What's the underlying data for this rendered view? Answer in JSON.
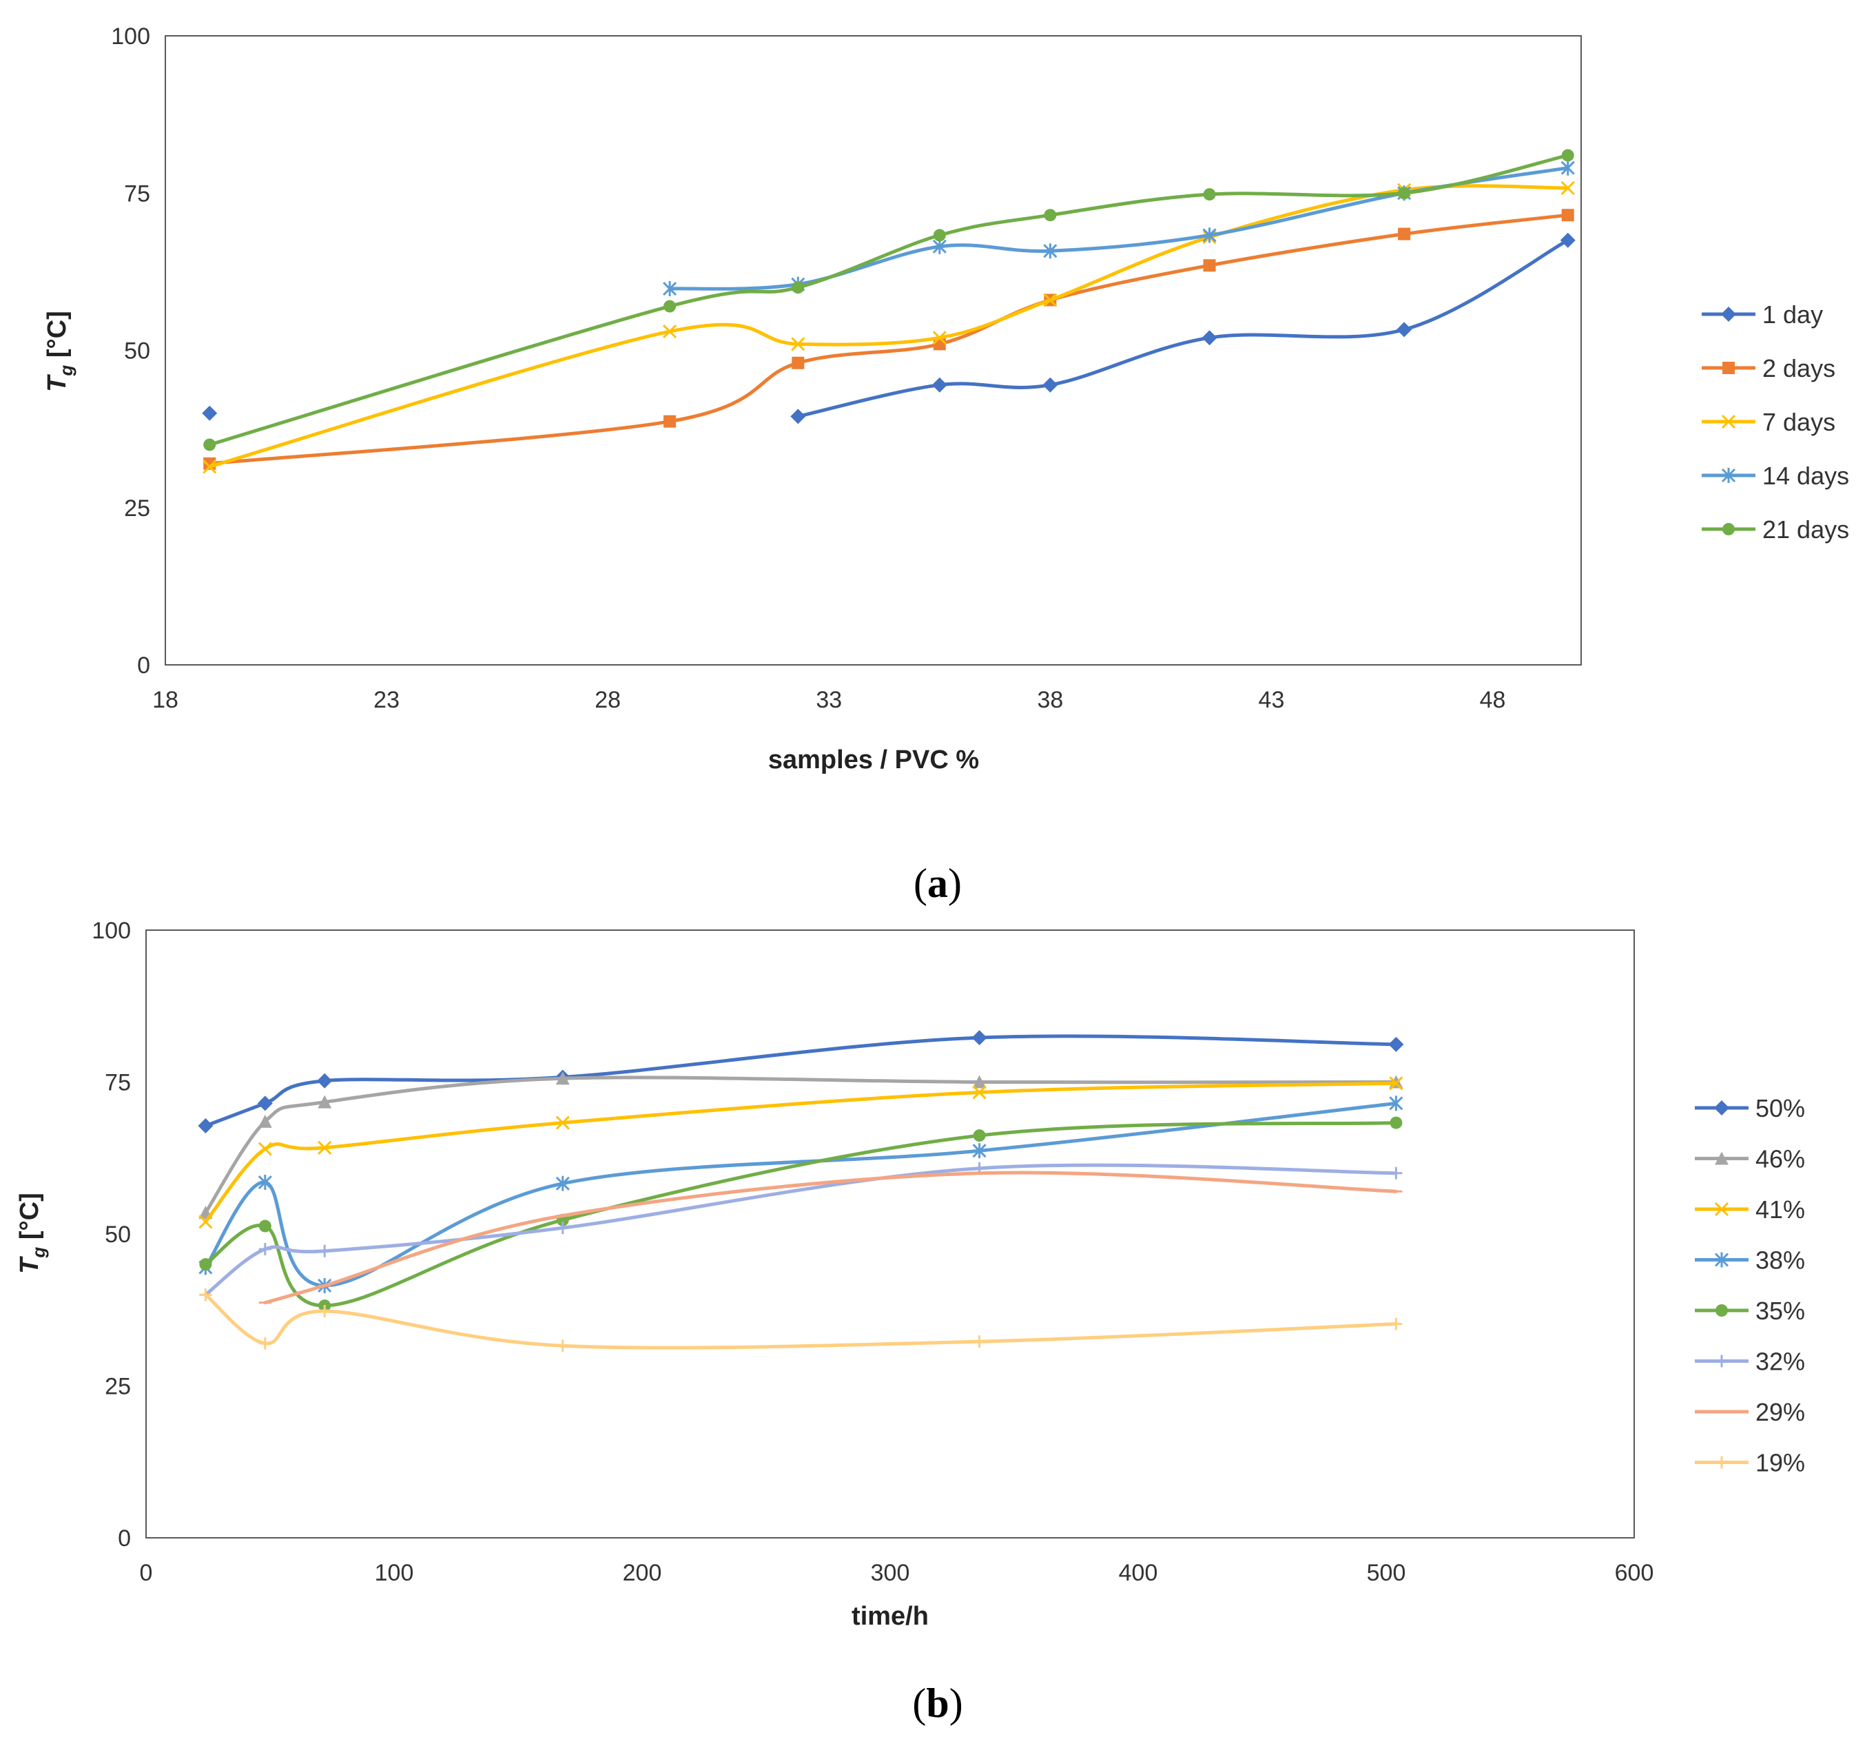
{
  "chart_data": [
    {
      "id": "a",
      "type": "line",
      "caption_open": "(",
      "caption_letter": "a",
      "caption_close": ")",
      "ylabel_main": "T",
      "ylabel_sub": "g",
      "ylabel_unit": " [°C]",
      "xlabel": "samples / PVC %",
      "xlim": [
        18,
        50
      ],
      "ylim": [
        0,
        100
      ],
      "xticks": [
        18,
        23,
        28,
        33,
        38,
        43,
        48
      ],
      "yticks": [
        0,
        25,
        50,
        75,
        100
      ],
      "legend_position": "right",
      "series": [
        {
          "name": "1 day",
          "color": "#4472C4",
          "marker": "diamond",
          "x": [
            19,
            32.3,
            35.5,
            38,
            41.6,
            46,
            49.7
          ],
          "y": [
            40,
            39.5,
            44.5,
            44.5,
            52,
            53.3,
            67.5
          ],
          "segments": [
            [
              0,
              0
            ],
            [
              1,
              6
            ]
          ]
        },
        {
          "name": "2 days",
          "color": "#ED7D31",
          "marker": "square",
          "x": [
            19,
            29.4,
            32.3,
            35.5,
            38,
            41.6,
            46,
            49.7
          ],
          "y": [
            32,
            38.7,
            48,
            51,
            58,
            63.5,
            68.5,
            71.5
          ],
          "segments": [
            [
              0,
              7
            ]
          ]
        },
        {
          "name": "7 days",
          "color": "#FFC000",
          "marker": "x",
          "x": [
            19,
            29.4,
            32.3,
            35.5,
            38,
            41.6,
            46,
            49.7
          ],
          "y": [
            31.5,
            53,
            51,
            52,
            58,
            68,
            75.5,
            75.8
          ],
          "segments": [
            [
              0,
              7
            ]
          ]
        },
        {
          "name": "14 days",
          "color": "#5B9BD5",
          "marker": "star",
          "x": [
            29.4,
            32.3,
            35.5,
            38,
            41.6,
            46,
            49.7
          ],
          "y": [
            59.8,
            60.5,
            66.5,
            65.8,
            68.3,
            75,
            79
          ],
          "segments": [
            [
              0,
              6
            ]
          ]
        },
        {
          "name": "21 days",
          "color": "#70AD47",
          "marker": "circle",
          "x": [
            19,
            29.4,
            32.3,
            35.5,
            38,
            41.6,
            46,
            49.7
          ],
          "y": [
            35,
            57,
            60,
            68.3,
            71.5,
            74.8,
            75,
            81
          ],
          "segments": [
            [
              0,
              7
            ]
          ]
        }
      ]
    },
    {
      "id": "b",
      "type": "line",
      "caption_open": "(",
      "caption_letter": "b",
      "caption_close": ")",
      "ylabel_main": "T",
      "ylabel_sub": "g",
      "ylabel_unit": " [°C]",
      "xlabel": "time/h",
      "xlim": [
        0,
        600
      ],
      "ylim": [
        0,
        100
      ],
      "xticks": [
        0,
        100,
        200,
        300,
        400,
        500,
        600
      ],
      "yticks": [
        0,
        25,
        50,
        75,
        100
      ],
      "legend_position": "right",
      "series": [
        {
          "name": "50%",
          "color": "#4472C4",
          "marker": "diamond",
          "x": [
            24,
            48,
            72,
            168,
            336,
            504
          ],
          "y": [
            67.8,
            71.5,
            75.2,
            75.8,
            82.3,
            81.2
          ],
          "segments": [
            [
              0,
              5
            ]
          ]
        },
        {
          "name": "46%",
          "color": "#A5A5A5",
          "marker": "triangle",
          "x": [
            24,
            48,
            72,
            168,
            336,
            504
          ],
          "y": [
            53.5,
            68.5,
            71.7,
            75.6,
            75,
            75
          ],
          "segments": [
            [
              0,
              5
            ]
          ]
        },
        {
          "name": "41%",
          "color": "#FFC000",
          "marker": "x",
          "x": [
            24,
            48,
            72,
            168,
            336,
            504
          ],
          "y": [
            52,
            64,
            64.2,
            68.3,
            73.3,
            74.8
          ],
          "segments": [
            [
              0,
              5
            ]
          ]
        },
        {
          "name": "38%",
          "color": "#5B9BD5",
          "marker": "star",
          "x": [
            24,
            48,
            72,
            168,
            336,
            504
          ],
          "y": [
            44.5,
            58.5,
            41.5,
            58.3,
            63.7,
            71.5
          ],
          "segments": [
            [
              0,
              5
            ]
          ]
        },
        {
          "name": "35%",
          "color": "#70AD47",
          "marker": "circle",
          "x": [
            24,
            48,
            72,
            168,
            336,
            504
          ],
          "y": [
            45,
            51.3,
            38.2,
            52.3,
            66.2,
            68.3
          ],
          "segments": [
            [
              0,
              5
            ]
          ]
        },
        {
          "name": "32%",
          "color": "#9DAEE3",
          "marker": "plus",
          "x": [
            24,
            48,
            72,
            168,
            336,
            504
          ],
          "y": [
            40,
            47.5,
            47.2,
            51,
            60.8,
            60
          ],
          "segments": [
            [
              0,
              5
            ]
          ]
        },
        {
          "name": "29%",
          "color": "#F4A582",
          "marker": "dash",
          "x": [
            48,
            72,
            168,
            336,
            504
          ],
          "y": [
            38.7,
            41.5,
            53,
            60,
            57
          ],
          "segments": [
            [
              0,
              4
            ]
          ]
        },
        {
          "name": "19%",
          "color": "#FFCF7F",
          "marker": "plus",
          "x": [
            24,
            48,
            72,
            168,
            336,
            504
          ],
          "y": [
            40,
            32,
            37.3,
            31.6,
            32.3,
            35.2
          ],
          "segments": [
            [
              0,
              5
            ]
          ]
        }
      ]
    }
  ]
}
